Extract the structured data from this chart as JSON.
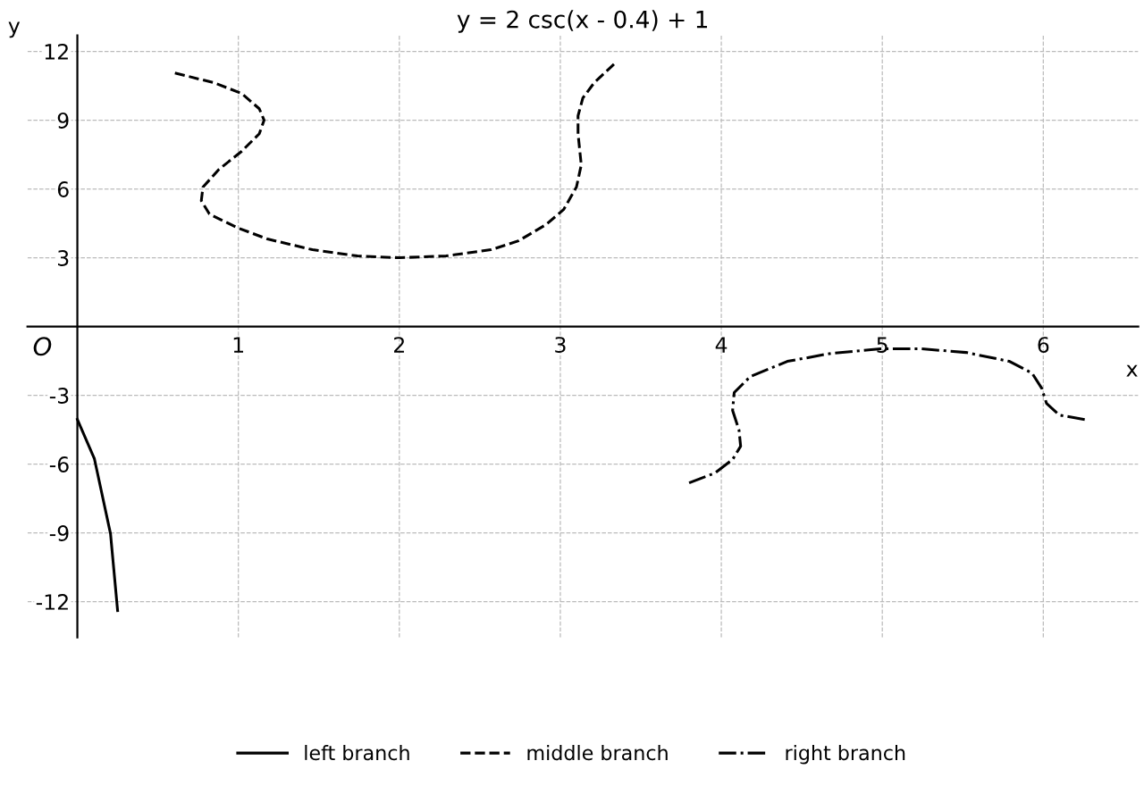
{
  "chart_data": {
    "type": "line",
    "title": "y = 2 csc(x - 0.4) + 1",
    "xlabel": "x",
    "ylabel": "y",
    "annotations": [
      "O"
    ],
    "series": [
      {
        "name": "left branch",
        "color": "#000000",
        "line_style": "solid",
        "x": [
          0,
          0.106,
          0.206,
          0.25
        ],
        "values": [
          -4.05,
          -5.77,
          -9.04,
          -12.39
        ]
      },
      {
        "name": "middle branch",
        "color": "#000000",
        "line_style": "dashed",
        "x": [
          0.606,
          0.85,
          1.02,
          1.13,
          1.16,
          1.13,
          1.02,
          0.88,
          0.78,
          0.77,
          0.82,
          0.99,
          1.18,
          1.46,
          1.74,
          2.0,
          2.29,
          2.57,
          2.74,
          2.91,
          3.02,
          3.1,
          3.13,
          3.11,
          3.11,
          3.14,
          3.21,
          3.34
        ],
        "values": [
          11.06,
          10.63,
          10.17,
          9.5,
          9.0,
          8.41,
          7.64,
          6.86,
          6.08,
          5.49,
          4.91,
          4.32,
          3.82,
          3.35,
          3.08,
          3.0,
          3.08,
          3.35,
          3.74,
          4.44,
          5.1,
          6.08,
          7.05,
          8.41,
          9.19,
          9.97,
          10.63,
          11.49
        ]
      },
      {
        "name": "right branch",
        "color": "#000000",
        "line_style": "dashdot",
        "x": [
          3.8,
          3.96,
          4.07,
          4.12,
          4.11,
          4.07,
          4.08,
          4.18,
          4.41,
          4.68,
          4.99,
          5.24,
          5.52,
          5.79,
          5.93,
          5.99,
          6.02,
          6.1,
          6.28
        ],
        "values": [
          -6.82,
          -6.39,
          -5.8,
          -5.22,
          -4.52,
          -3.66,
          -2.88,
          -2.18,
          -1.52,
          -1.17,
          -0.97,
          -0.97,
          -1.13,
          -1.52,
          -2.03,
          -2.69,
          -3.35,
          -3.86,
          -4.09
        ]
      }
    ],
    "xlim": [
      -0.31,
      6.59
    ],
    "ylim": [
      -13.56,
      12.7
    ],
    "xticks": [
      1,
      2,
      3,
      4,
      5,
      6
    ],
    "yticks": [
      -12,
      -9,
      -6,
      -3,
      3,
      6,
      9,
      12
    ],
    "grid": true,
    "legend": "bottom",
    "marker": "none"
  }
}
